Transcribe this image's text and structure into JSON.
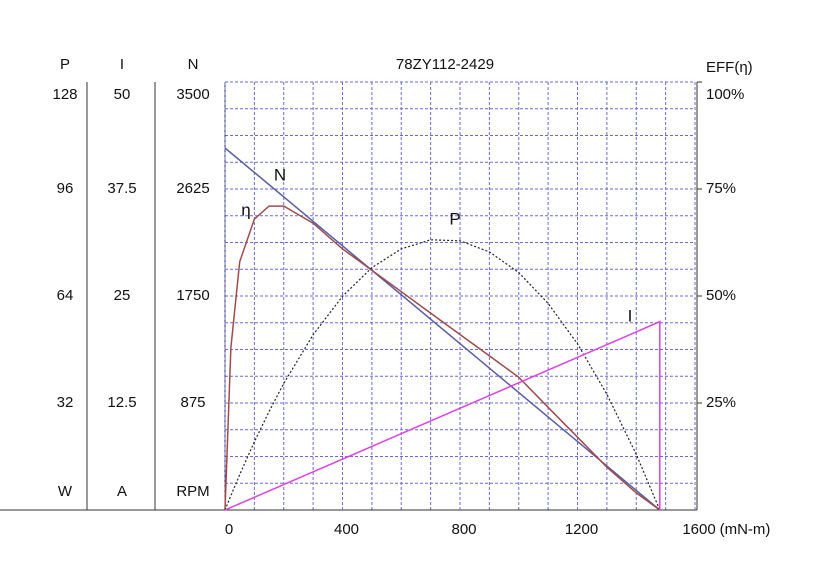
{
  "chart_data": {
    "type": "line",
    "title": "78ZY112-2429",
    "x_label": "(mN-m)",
    "xlim": [
      0,
      1600
    ],
    "xticks": [
      0,
      400,
      800,
      1200,
      1600
    ],
    "grid": true,
    "y_axes": [
      {
        "name": "P",
        "unit": "W",
        "ylim": [
          0,
          128
        ],
        "yticks": [
          32,
          64,
          96,
          128
        ]
      },
      {
        "name": "I",
        "unit": "A",
        "ylim": [
          0,
          50
        ],
        "yticks": [
          12.5,
          25,
          37.5,
          50
        ]
      },
      {
        "name": "N",
        "unit": "RPM",
        "ylim": [
          0,
          3500
        ],
        "yticks": [
          875,
          1750,
          2625,
          3500
        ]
      },
      {
        "name": "EFF(η)",
        "ylim": [
          0,
          100
        ],
        "yticks": [
          {
            "value": 25,
            "label": "25%"
          },
          {
            "value": 50,
            "label": "50%"
          },
          {
            "value": 75,
            "label": "75%"
          },
          {
            "value": 100,
            "label": "100%"
          }
        ]
      }
    ],
    "series": [
      {
        "name": "N",
        "axis": "N",
        "color": "#5b5ea6",
        "x": [
          0,
          1480
        ],
        "values": [
          2960,
          0
        ]
      },
      {
        "name": "η",
        "axis": "EFF(η)",
        "color": "#a04a4a",
        "x": [
          0,
          20,
          50,
          100,
          150,
          200,
          300,
          400,
          500,
          600,
          700,
          800,
          900,
          1000,
          1100,
          1200,
          1300,
          1400,
          1480
        ],
        "values": [
          0,
          38,
          58,
          68,
          71,
          71,
          67,
          61,
          56,
          51,
          46,
          41,
          36,
          31,
          24,
          17,
          10,
          4,
          0
        ]
      },
      {
        "name": "P",
        "axis": "P",
        "color": "#222222",
        "x": [
          0,
          20,
          50,
          100,
          150,
          200,
          300,
          400,
          500,
          600,
          700,
          800,
          900,
          1000,
          1100,
          1200,
          1300,
          1400,
          1480
        ],
        "values": [
          0,
          4.3,
          10.6,
          20.4,
          29.5,
          37.9,
          52.4,
          63.9,
          72.5,
          78.1,
          80.8,
          80.5,
          77.2,
          71.0,
          61.8,
          49.7,
          34.6,
          16.6,
          0
        ]
      },
      {
        "name": "I",
        "axis": "I",
        "color": "#e040e0",
        "x": [
          0,
          1480,
          1480
        ],
        "values": [
          0,
          22,
          0
        ]
      }
    ]
  }
}
